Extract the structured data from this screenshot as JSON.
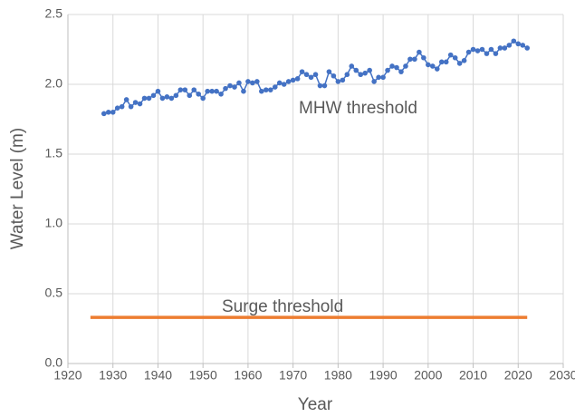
{
  "chart_data": {
    "type": "line",
    "xlabel": "Year",
    "ylabel": "Water Level (m)",
    "xlim": [
      1920,
      2030
    ],
    "xticks": [
      1920,
      1930,
      1940,
      1950,
      1960,
      1970,
      1980,
      1990,
      2000,
      2010,
      2020,
      2030
    ],
    "ylim": [
      0,
      2.5
    ],
    "yticks": [
      {
        "value": 0,
        "label": "0.0"
      },
      0.5,
      {
        "value": 1,
        "label": "1.0"
      },
      1.5,
      {
        "value": 2,
        "label": "2.0"
      },
      2.5
    ],
    "grid": true,
    "series": [
      {
        "name": "MHW threshold",
        "color": "#4472c4",
        "marker": true,
        "x": [
          1928,
          1929,
          1930,
          1931,
          1932,
          1933,
          1934,
          1935,
          1936,
          1937,
          1938,
          1939,
          1940,
          1941,
          1942,
          1943,
          1944,
          1945,
          1946,
          1947,
          1948,
          1949,
          1950,
          1951,
          1952,
          1953,
          1954,
          1955,
          1956,
          1957,
          1958,
          1959,
          1960,
          1961,
          1962,
          1963,
          1964,
          1965,
          1966,
          1967,
          1968,
          1969,
          1970,
          1971,
          1972,
          1973,
          1974,
          1975,
          1976,
          1977,
          1978,
          1979,
          1980,
          1981,
          1982,
          1983,
          1984,
          1985,
          1986,
          1987,
          1988,
          1989,
          1990,
          1991,
          1992,
          1993,
          1994,
          1995,
          1996,
          1997,
          1998,
          1999,
          2000,
          2001,
          2002,
          2003,
          2004,
          2005,
          2006,
          2007,
          2008,
          2009,
          2010,
          2011,
          2012,
          2013,
          2014,
          2015,
          2016,
          2017,
          2018,
          2019,
          2020,
          2021,
          2022
        ],
        "values": [
          1.79,
          1.8,
          1.8,
          1.83,
          1.84,
          1.89,
          1.84,
          1.87,
          1.86,
          1.9,
          1.9,
          1.92,
          1.95,
          1.9,
          1.91,
          1.9,
          1.92,
          1.96,
          1.96,
          1.92,
          1.96,
          1.93,
          1.9,
          1.95,
          1.95,
          1.95,
          1.93,
          1.97,
          1.99,
          1.98,
          2.01,
          1.95,
          2.02,
          2.01,
          2.02,
          1.95,
          1.96,
          1.96,
          1.98,
          2.01,
          2.0,
          2.02,
          2.03,
          2.04,
          2.09,
          2.07,
          2.05,
          2.07,
          1.99,
          1.99,
          2.09,
          2.06,
          2.02,
          2.03,
          2.07,
          2.13,
          2.1,
          2.07,
          2.08,
          2.1,
          2.02,
          2.05,
          2.05,
          2.1,
          2.13,
          2.12,
          2.09,
          2.13,
          2.18,
          2.18,
          2.23,
          2.19,
          2.14,
          2.13,
          2.11,
          2.16,
          2.16,
          2.21,
          2.19,
          2.15,
          2.17,
          2.23,
          2.25,
          2.24,
          2.25,
          2.22,
          2.25,
          2.22,
          2.26,
          2.26,
          2.28,
          2.31,
          2.29,
          2.28,
          2.26
        ]
      },
      {
        "name": "Surge threshold",
        "color": "#ed7d31",
        "marker": false,
        "x": [
          1925,
          2022
        ],
        "values": [
          0.33,
          0.33
        ]
      }
    ]
  }
}
